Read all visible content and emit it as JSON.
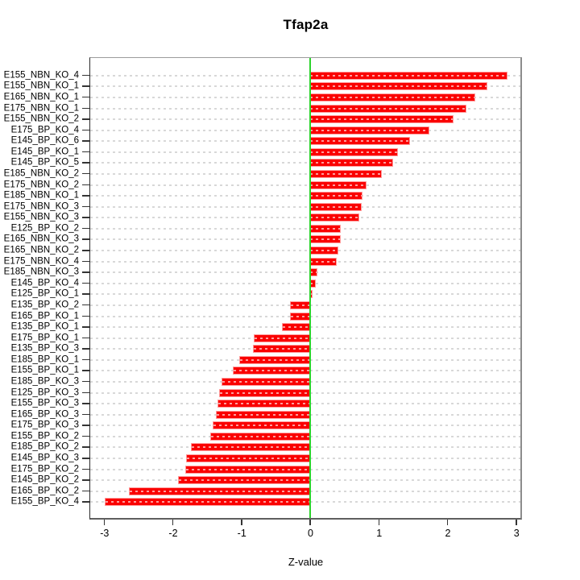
{
  "chart_data": {
    "type": "bar",
    "orientation": "horizontal",
    "title": "Tfap2a",
    "xlabel": "Z-value",
    "xlim": [
      -3.22,
      3.08
    ],
    "x_ticks": [
      -3,
      -2,
      -1,
      0,
      1,
      2,
      3
    ],
    "grid": "dashed horizontal line at each bar row",
    "legend_position": "none",
    "zero_reference_line": 0,
    "categories": [
      "E155_NBN_KO_4",
      "E155_NBN_KO_1",
      "E165_NBN_KO_1",
      "E175_NBN_KO_1",
      "E155_NBN_KO_2",
      "E175_BP_KO_4",
      "E145_BP_KO_6",
      "E145_BP_KO_1",
      "E145_BP_KO_5",
      "E185_NBN_KO_2",
      "E175_NBN_KO_2",
      "E185_NBN_KO_1",
      "E175_NBN_KO_3",
      "E155_NBN_KO_3",
      "E125_BP_KO_2",
      "E165_NBN_KO_3",
      "E165_NBN_KO_2",
      "E175_NBN_KO_4",
      "E185_NBN_KO_3",
      "E145_BP_KO_4",
      "E125_BP_KO_1",
      "E135_BP_KO_2",
      "E165_BP_KO_1",
      "E135_BP_KO_1",
      "E175_BP_KO_1",
      "E135_BP_KO_3",
      "E185_BP_KO_1",
      "E155_BP_KO_1",
      "E185_BP_KO_3",
      "E125_BP_KO_3",
      "E155_BP_KO_3",
      "E165_BP_KO_3",
      "E175_BP_KO_3",
      "E155_BP_KO_2",
      "E185_BP_KO_2",
      "E145_BP_KO_3",
      "E175_BP_KO_2",
      "E145_BP_KO_2",
      "E165_BP_KO_2",
      "E155_BP_KO_4"
    ],
    "values": [
      2.88,
      2.59,
      2.41,
      2.28,
      2.09,
      1.74,
      1.45,
      1.27,
      1.2,
      1.04,
      0.81,
      0.76,
      0.75,
      0.71,
      0.44,
      0.44,
      0.4,
      0.38,
      0.09,
      0.07,
      0.02,
      -0.28,
      -0.28,
      -0.4,
      -0.81,
      -0.83,
      -1.03,
      -1.12,
      -1.29,
      -1.32,
      -1.34,
      -1.37,
      -1.41,
      -1.45,
      -1.73,
      -1.8,
      -1.82,
      -1.92,
      -2.64,
      -3.0
    ]
  },
  "colors": {
    "background": "#FFFFFF",
    "bar_fill": "#FA0000",
    "bar_edge": "#FF9C9C",
    "zero_line": "#2CD32C",
    "gridline": "#D8D8D8",
    "axis_text": "#000000"
  }
}
